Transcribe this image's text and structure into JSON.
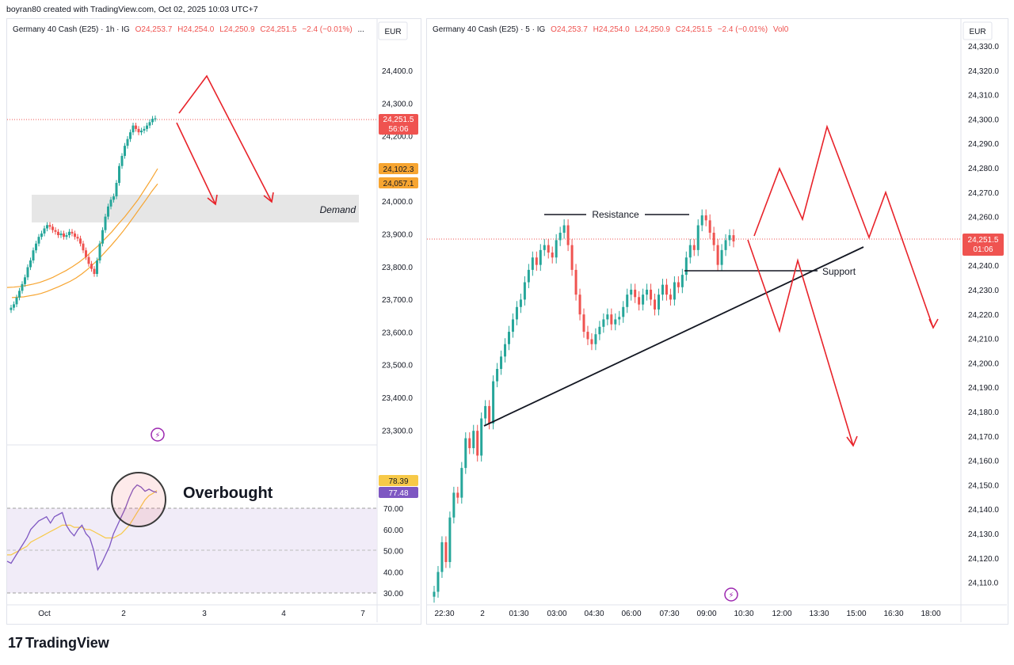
{
  "header": {
    "created_by": "boyran80 created with TradingView.com, Oct 02, 2025 10:03 UTC+7"
  },
  "brand": {
    "label": "TradingView",
    "logo_glyph": "17"
  },
  "colors": {
    "up": "#26a69a",
    "down": "#ef5350",
    "arrow": "#e8232a",
    "ma": "#f7a531",
    "rsi": "#7e57c2",
    "demand": "#e6e6e6"
  },
  "left_chart": {
    "legend": {
      "symbol": "Germany 40 Cash (E25) · 1h · IG",
      "o": "O24,253.7",
      "h": "H24,254.0",
      "l": "L24,250.9",
      "c": "C24,251.5",
      "chg": "−2.4 (−0.01%)",
      "more": "..."
    },
    "currency": "EUR",
    "price_ticks": [
      "24,400.0",
      "24,300.0",
      "24,200.0",
      "24,100.0",
      "24,000.0",
      "23,900.0",
      "23,800.0",
      "23,700.0",
      "23,600.0",
      "23,500.0",
      "23,400.0",
      "23,300.0"
    ],
    "price_label": "24,251.5",
    "countdown": "56:06",
    "ma_label_1": "24,102.3",
    "ma_label_2": "24,057.1",
    "demand_label": "Demand",
    "time_ticks": [
      "Oct",
      "2",
      "3",
      "4",
      "7"
    ]
  },
  "rsi": {
    "ticks": [
      "70.00",
      "60.00",
      "50.00",
      "40.00",
      "30.00"
    ],
    "label_ma": "78.39",
    "label_rsi": "77.48",
    "annotation": "Overbought"
  },
  "right_chart": {
    "legend": {
      "symbol": "Germany 40 Cash (E25) · 5 · IG",
      "o": "O24,253.7",
      "h": "H24,254.0",
      "l": "L24,250.9",
      "c": "C24,251.5",
      "chg": "−2.4 (−0.01%)",
      "vol": "Vol0"
    },
    "currency": "EUR",
    "price_ticks": [
      "24,330.0",
      "24,320.0",
      "24,310.0",
      "24,300.0",
      "24,290.0",
      "24,280.0",
      "24,270.0",
      "24,260.0",
      "24,250.0",
      "24,240.0",
      "24,230.0",
      "24,220.0",
      "24,210.0",
      "24,200.0",
      "24,190.0",
      "24,180.0",
      "24,170.0",
      "24,160.0",
      "24,150.0",
      "24,140.0",
      "24,130.0",
      "24,120.0",
      "24,110.0"
    ],
    "price_label": "24,251.5",
    "countdown": "01:06",
    "resistance_label": "Resistance",
    "support_label": "Support",
    "time_ticks": [
      "22:30",
      "2",
      "01:30",
      "03:00",
      "04:30",
      "06:00",
      "07:30",
      "09:00",
      "10:30",
      "12:00",
      "13:30",
      "15:00",
      "16:30",
      "18:00"
    ]
  },
  "chart_data": [
    {
      "type": "candlestick",
      "title": "Germany 40 Cash (E25) · 1h · IG",
      "ylim": [
        23330,
        24445
      ],
      "closes": [
        23690,
        23700,
        23720,
        23740,
        23760,
        23780,
        23810,
        23830,
        23860,
        23880,
        23900,
        23910,
        23925,
        23935,
        23930,
        23920,
        23915,
        23905,
        23910,
        23900,
        23905,
        23915,
        23910,
        23900,
        23895,
        23880,
        23860,
        23840,
        23820,
        23805,
        23790,
        23830,
        23880,
        23920,
        23960,
        23990,
        24010,
        24020,
        24060,
        24110,
        24140,
        24170,
        24190,
        24210,
        24230,
        24220,
        24210,
        24215,
        24220,
        24230,
        24240,
        24250,
        24251.5
      ],
      "moving_averages": [
        {
          "name": "MA fast",
          "values": [
            23750,
            23751,
            23753,
            23756,
            23760,
            23765,
            23772,
            23780,
            23790,
            23800,
            23812,
            23825,
            23840,
            23858,
            23875,
            23895,
            23915,
            23938,
            23960,
            23985,
            24010,
            24040,
            24070,
            24102.3
          ]
        },
        {
          "name": "MA slow",
          "values": [
            23720,
            23721,
            23722,
            23725,
            23728,
            23732,
            23738,
            23745,
            23752,
            23760,
            23768,
            23778,
            23790,
            23804,
            23820,
            23836,
            23855,
            23874,
            23894,
            23915,
            23938,
            23962,
            23986,
            24010,
            24035,
            24057.1
          ]
        }
      ],
      "demand_zone": [
        23940,
        24020
      ]
    },
    {
      "type": "line",
      "title": "RSI",
      "ylim": [
        25,
        95
      ],
      "rsi": [
        45,
        44,
        47,
        50,
        53,
        56,
        60,
        62,
        64,
        65,
        66,
        63,
        66,
        67,
        68,
        62,
        59,
        57,
        60,
        62,
        58,
        56,
        50,
        41,
        44,
        48,
        52,
        58,
        62,
        66,
        70,
        75,
        79,
        81,
        80,
        78,
        79,
        78,
        77.48
      ],
      "rsi_ma": [
        48,
        48,
        49,
        50,
        51,
        52,
        54,
        55,
        56,
        57,
        58,
        59,
        60,
        61,
        62,
        62,
        62,
        61,
        61,
        61,
        60,
        60,
        59,
        58,
        57,
        56,
        56,
        56,
        57,
        58,
        60,
        62,
        65,
        68,
        71,
        74,
        76,
        77,
        78.39
      ]
    },
    {
      "type": "candlestick",
      "title": "Germany 40 Cash (E25) · 5 · IG",
      "ylim": [
        24106,
        24333
      ],
      "closes": [
        24110,
        24118,
        24130,
        24122,
        24140,
        24150,
        24148,
        24160,
        24172,
        24168,
        24175,
        24165,
        24180,
        24185,
        24178,
        24195,
        24200,
        24205,
        24210,
        24215,
        24220,
        24225,
        24228,
        24235,
        24240,
        24245,
        24242,
        24248,
        24250,
        24247,
        24245,
        24252,
        24255,
        24258,
        24250,
        24240,
        24230,
        24222,
        24215,
        24212,
        24210,
        24214,
        24217,
        24220,
        24222,
        24218,
        24220,
        24221,
        24225,
        24230,
        24232,
        24229,
        24226,
        24230,
        24232,
        24228,
        24224,
        24230,
        24234,
        24230,
        24228,
        24235,
        24233,
        24238,
        24245,
        24250,
        24248,
        24258,
        24262,
        24260,
        24255,
        24250,
        24242,
        24248,
        24252,
        24254,
        24251.5
      ],
      "resistance": 24260,
      "support": 24242,
      "trendline": [
        [
          0.1,
          24180
        ],
        [
          0.9,
          24250
        ]
      ],
      "projected_paths": [
        [
          24250,
          24280,
          24260,
          24298,
          24250,
          24270,
          24215
        ],
        [
          24250,
          24215,
          24245,
          24165
        ]
      ]
    }
  ]
}
